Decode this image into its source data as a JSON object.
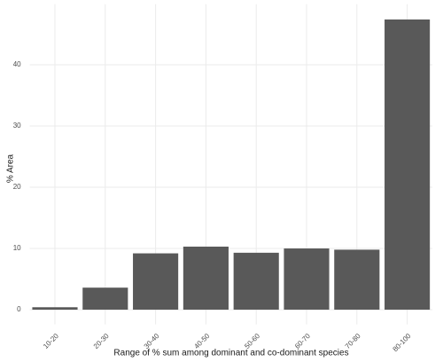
{
  "chart_data": {
    "type": "bar",
    "x_label": "Range of % sum among dominant and co-dominant species",
    "y_label": "% Area",
    "categories": [
      "10-20",
      "20-30",
      "30-40",
      "40-50",
      "50-60",
      "60-70",
      "70-80",
      "80-100"
    ],
    "values": [
      0.4,
      3.6,
      9.2,
      10.3,
      9.3,
      10.0,
      9.8,
      47.4
    ],
    "color": "#595959",
    "ylim": [
      -2.4,
      49.9
    ],
    "yticks": [
      0,
      10,
      20,
      30,
      40
    ],
    "grid": true
  }
}
